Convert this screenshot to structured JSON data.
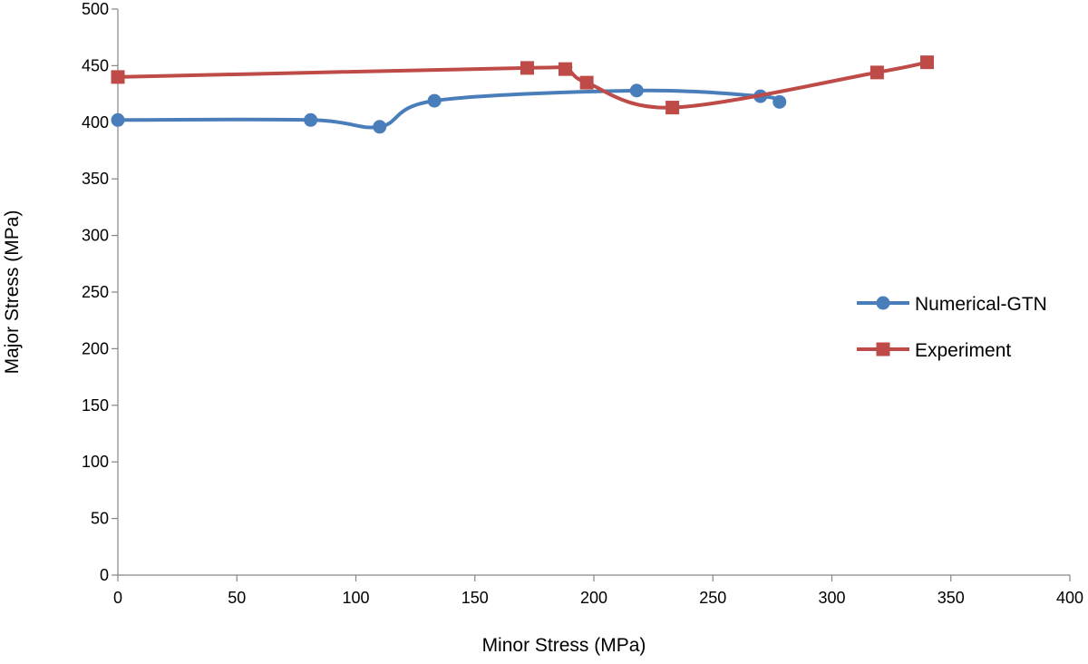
{
  "chart_data": {
    "type": "line",
    "title": "",
    "xlabel": "Minor Stress (MPa)",
    "ylabel": "Major Stress (MPa)",
    "xlim": [
      0,
      400
    ],
    "ylim": [
      0,
      500
    ],
    "x_ticks": [
      0,
      50,
      100,
      150,
      200,
      250,
      300,
      350,
      400
    ],
    "y_ticks": [
      0,
      50,
      100,
      150,
      200,
      250,
      300,
      350,
      400,
      450,
      500
    ],
    "grid": false,
    "smoothed": true,
    "legend_position": "right",
    "series": [
      {
        "name": "Numerical-GTN",
        "color": "#4A7EBB",
        "marker": "circle",
        "x": [
          0,
          81,
          110,
          133,
          218,
          270,
          278
        ],
        "y": [
          402,
          402,
          396,
          419,
          428,
          423,
          418
        ]
      },
      {
        "name": "Experiment",
        "color": "#BE4B48",
        "marker": "square",
        "x": [
          0,
          172,
          188,
          197,
          233,
          319,
          340
        ],
        "y": [
          440,
          448,
          447,
          435,
          413,
          444,
          453
        ]
      }
    ]
  }
}
